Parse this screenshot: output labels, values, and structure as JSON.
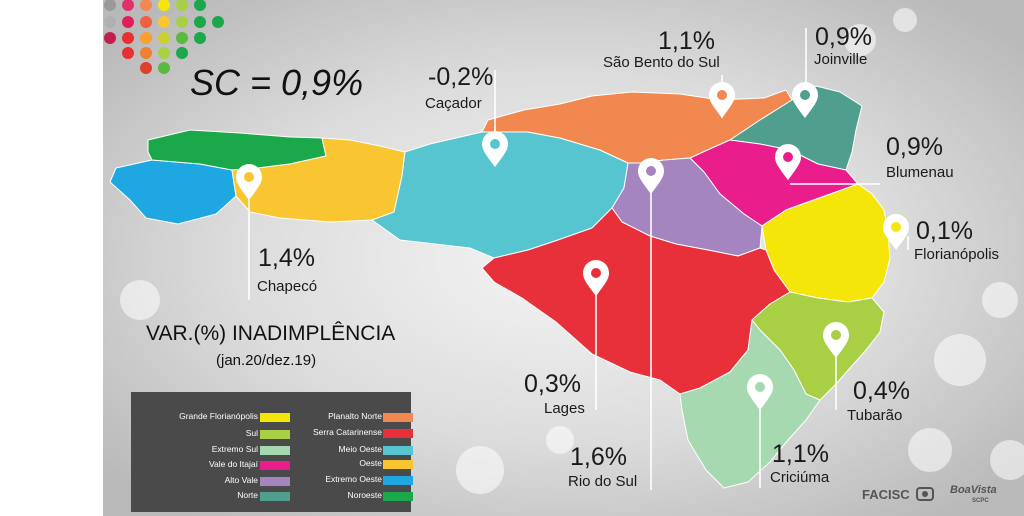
{
  "headline": "SC = 0,9%",
  "title": "VAR.(%) INADIMPLÊNCIA",
  "subtitle": "(jan.20/dez.19)",
  "regions": [
    {
      "id": "chapeco",
      "pct": "1,4%",
      "city": "Chapecó"
    },
    {
      "id": "cacador",
      "pct": "-0,2%",
      "city": "Caçador"
    },
    {
      "id": "sao-bento",
      "pct": "1,1%",
      "city": "São Bento do Sul"
    },
    {
      "id": "joinville",
      "pct": "0,9%",
      "city": "Joinville"
    },
    {
      "id": "blumenau",
      "pct": "0,9%",
      "city": "Blumenau"
    },
    {
      "id": "florianopolis",
      "pct": "0,1%",
      "city": "Florianópolis"
    },
    {
      "id": "lages",
      "pct": "0,3%",
      "city": "Lages"
    },
    {
      "id": "rio-do-sul",
      "pct": "1,6%",
      "city": "Rio do Sul"
    },
    {
      "id": "tubarao",
      "pct": "0,4%",
      "city": "Tubarão"
    },
    {
      "id": "criciuma",
      "pct": "1,1%",
      "city": "Criciúma"
    }
  ],
  "legend": {
    "left": [
      {
        "label": "Grande Florianópolis",
        "color": "#f5e60a"
      },
      {
        "label": "Sul",
        "color": "#a9cf45"
      },
      {
        "label": "Extremo Sul",
        "color": "#a6d9b0"
      },
      {
        "label": "Vale do Itajaí",
        "color": "#e91e8c"
      },
      {
        "label": "Alto Vale",
        "color": "#a585c0"
      },
      {
        "label": "Norte",
        "color": "#4f9e8e"
      }
    ],
    "right": [
      {
        "label": "Planalto Norte",
        "color": "#f0884f"
      },
      {
        "label": "Serra Catarinense",
        "color": "#e8303a"
      },
      {
        "label": "Meio Oeste",
        "color": "#56c5d0"
      },
      {
        "label": "Oeste",
        "color": "#f9c531"
      },
      {
        "label": "Extremo Oeste",
        "color": "#1ea7e1"
      },
      {
        "label": "Noroeste",
        "color": "#1aa84a"
      }
    ]
  },
  "logos": {
    "facisc": "FACISC",
    "boavista": "BoaVista",
    "boavista_sub": "SCPC"
  }
}
